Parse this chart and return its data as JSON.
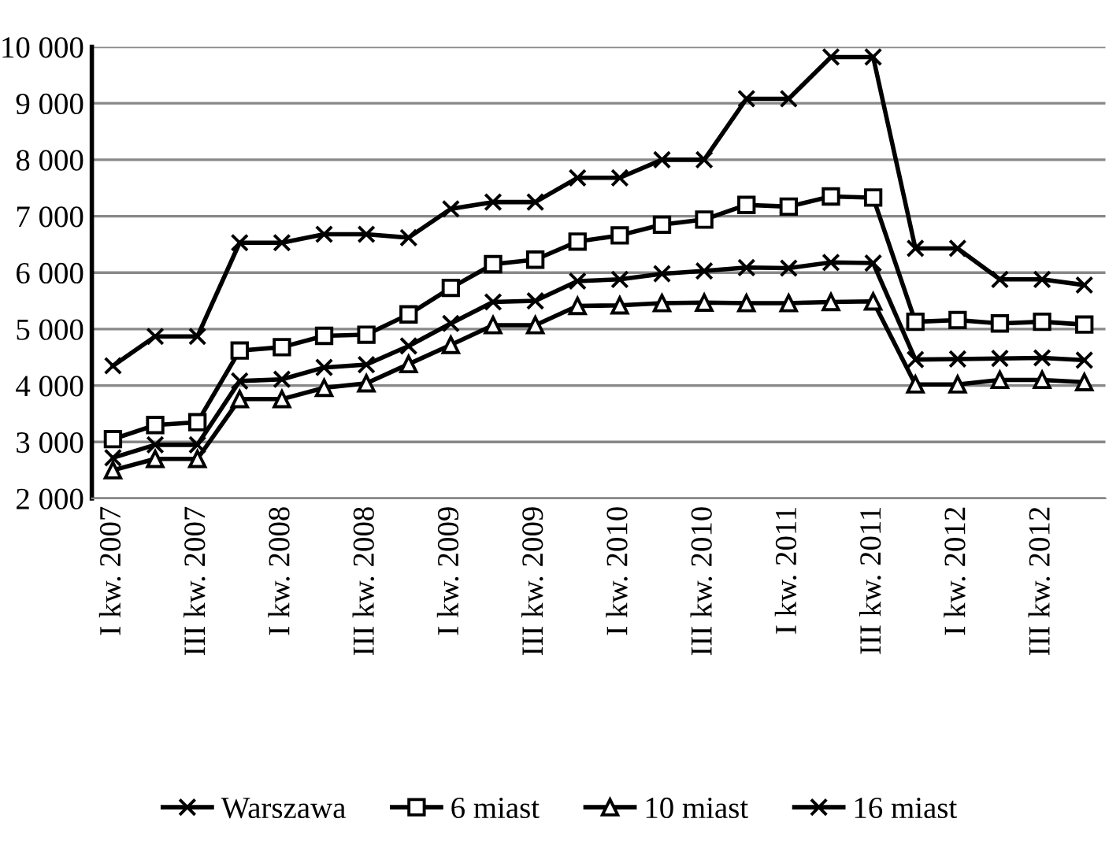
{
  "chart_data": {
    "type": "line",
    "categories": [
      "I kw. 2007",
      null,
      "III kw. 2007",
      null,
      "I kw. 2008",
      null,
      "III kw. 2008",
      null,
      "I kw. 2009",
      null,
      "III kw. 2009",
      null,
      "I kw. 2010",
      null,
      "III kw. 2010",
      null,
      "I kw. 2011",
      null,
      "III kw. 2011",
      null,
      "I kw. 2012",
      null,
      "III kw. 2012",
      null
    ],
    "series": [
      {
        "name": "Warszawa",
        "color": "#000000",
        "marker": "cross",
        "values": [
          4350,
          4870,
          4870,
          6530,
          6530,
          6680,
          6680,
          6620,
          7130,
          7250,
          7250,
          7680,
          7680,
          8000,
          8000,
          9080,
          9080,
          9820,
          9820,
          6430,
          6430,
          5880,
          5880,
          5780
        ]
      },
      {
        "name": "6 miast",
        "color": "#000000",
        "marker": "square",
        "values": [
          3050,
          3300,
          3350,
          4620,
          4680,
          4880,
          4900,
          5260,
          5730,
          6150,
          6230,
          6550,
          6660,
          6850,
          6940,
          7200,
          7170,
          7350,
          7330,
          5130,
          5160,
          5100,
          5130,
          5080
        ]
      },
      {
        "name": "10 miast",
        "color": "#000000",
        "marker": "triangle",
        "values": [
          2500,
          2700,
          2700,
          3760,
          3760,
          3960,
          4040,
          4380,
          4720,
          5070,
          5070,
          5410,
          5420,
          5460,
          5470,
          5460,
          5460,
          5480,
          5490,
          4020,
          4020,
          4100,
          4100,
          4060
        ]
      },
      {
        "name": "16 miast",
        "color": "#000000",
        "marker": "cross",
        "values": [
          2720,
          2950,
          2950,
          4080,
          4110,
          4320,
          4370,
          4700,
          5100,
          5480,
          5500,
          5850,
          5880,
          5980,
          6030,
          6090,
          6080,
          6180,
          6170,
          4460,
          4470,
          4480,
          4490,
          4450
        ]
      }
    ],
    "ylim": [
      2000,
      10000
    ],
    "yticks": [
      {
        "value": 2000,
        "label": "2 000"
      },
      {
        "value": 3000,
        "label": "3 000"
      },
      {
        "value": 4000,
        "label": "4 000"
      },
      {
        "value": 5000,
        "label": "5 000"
      },
      {
        "value": 6000,
        "label": "6 000"
      },
      {
        "value": 7000,
        "label": "7 000"
      },
      {
        "value": 8000,
        "label": "8 000"
      },
      {
        "value": 9000,
        "label": "9 000"
      },
      {
        "value": 10000,
        "label": "10 000"
      }
    ],
    "grid": "y",
    "legend": "bottom",
    "line_style": "solid"
  }
}
